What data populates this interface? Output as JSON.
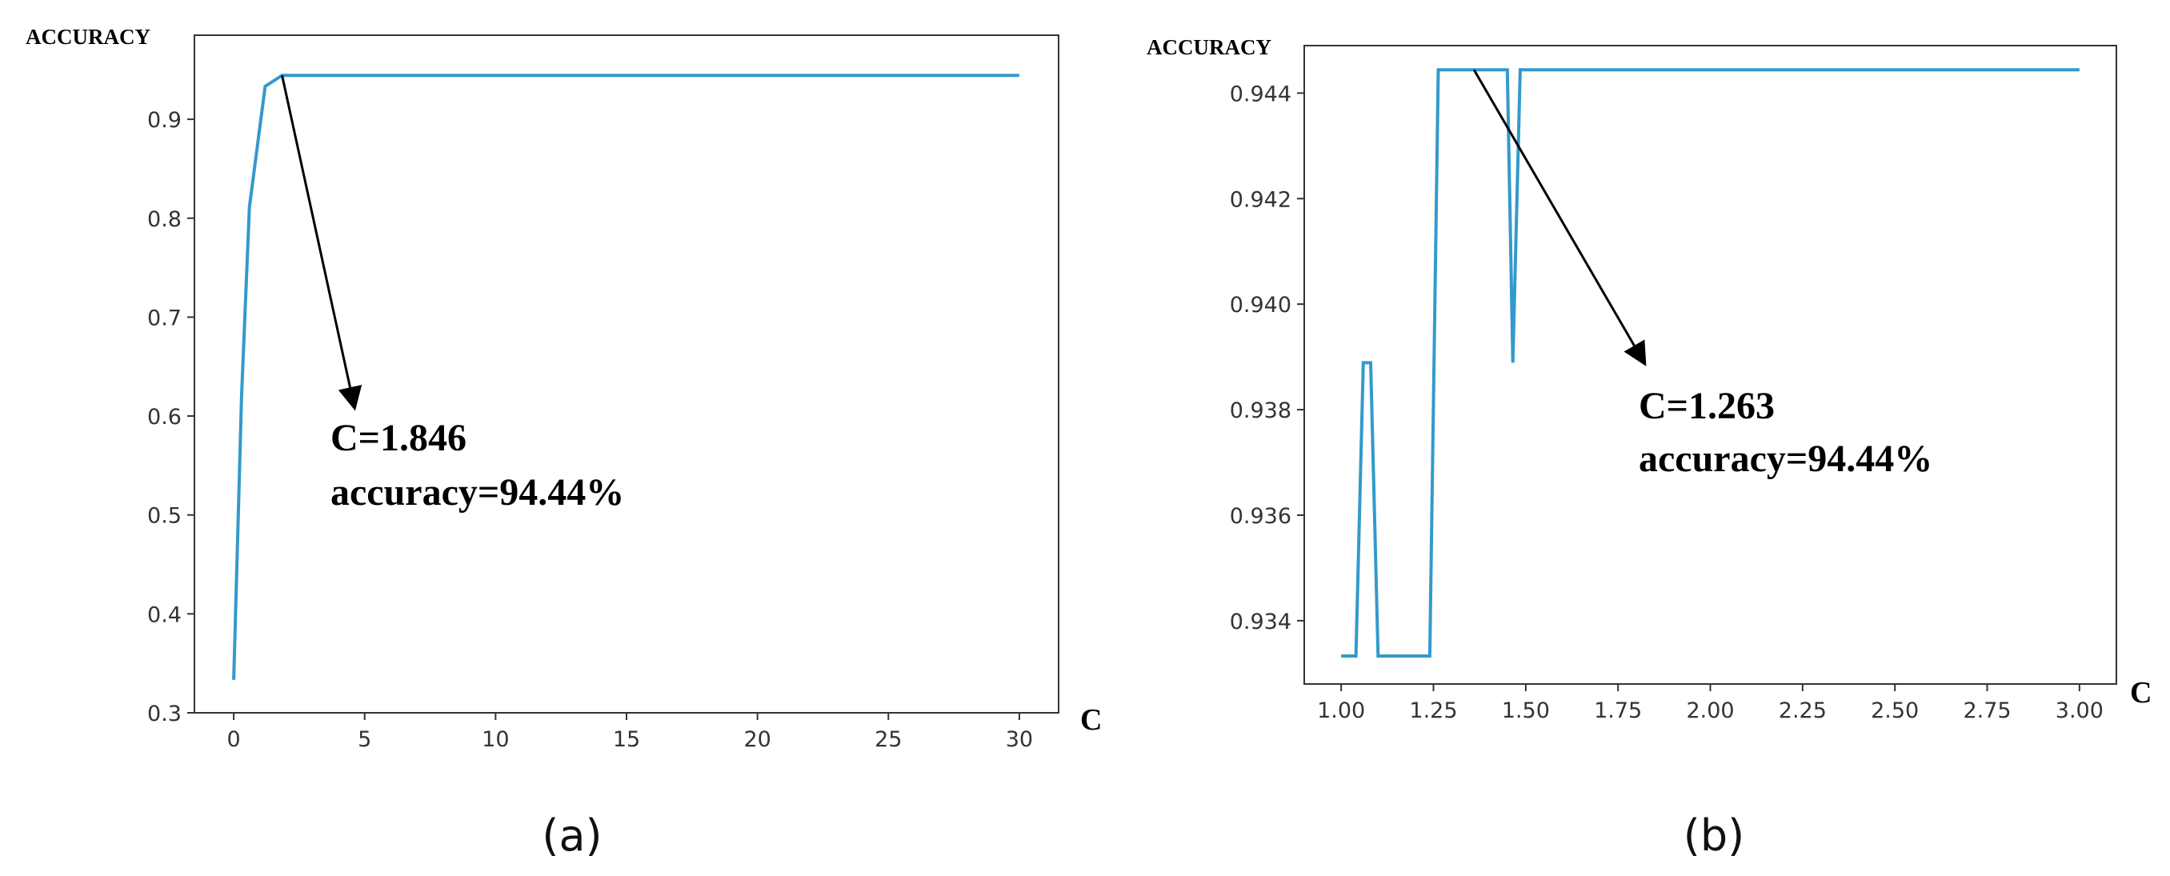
{
  "chart_data": [
    {
      "type": "line",
      "panel_label": "(a)",
      "ylabel": "ACCURACY",
      "xlabel": "C",
      "xlim": [
        -1.5,
        31.5
      ],
      "ylim": [
        0.3,
        0.985
      ],
      "xticks": [
        0,
        5,
        10,
        15,
        20,
        25,
        30
      ],
      "xtick_labels": [
        "0",
        "5",
        "10",
        "15",
        "20",
        "25",
        "30"
      ],
      "yticks": [
        0.3,
        0.4,
        0.5,
        0.6,
        0.7,
        0.8,
        0.9
      ],
      "ytick_labels": [
        "0.3",
        "0.4",
        "0.5",
        "0.6",
        "0.7",
        "0.8",
        "0.9"
      ],
      "grid": false,
      "line_color": "#3399cc",
      "series": [
        {
          "x": [
            0.0,
            0.3,
            0.6,
            1.2,
            1.85,
            30.0
          ],
          "y": [
            0.3333,
            0.62,
            0.8111,
            0.9333,
            0.9444,
            0.9444
          ]
        }
      ],
      "annotation": {
        "lines": [
          "C=1.846",
          "accuracy=94.44%"
        ],
        "point": [
          1.846,
          0.9444
        ],
        "arrow_to": [
          4.6,
          0.61
        ]
      }
    },
    {
      "type": "line",
      "panel_label": "(b)",
      "ylabel": "ACCURACY",
      "xlabel": "C",
      "xlim": [
        0.9,
        3.1
      ],
      "ylim": [
        0.9328,
        0.9449
      ],
      "xticks": [
        1.0,
        1.25,
        1.5,
        1.75,
        2.0,
        2.25,
        2.5,
        2.75,
        3.0
      ],
      "xtick_labels": [
        "1.00",
        "1.25",
        "1.50",
        "1.75",
        "2.00",
        "2.25",
        "2.50",
        "2.75",
        "3.00"
      ],
      "yticks": [
        0.934,
        0.936,
        0.938,
        0.94,
        0.942,
        0.944
      ],
      "ytick_labels": [
        "0.934",
        "0.936",
        "0.938",
        "0.940",
        "0.942",
        "0.944"
      ],
      "grid": false,
      "line_color": "#3399cc",
      "series": [
        {
          "x": [
            1.0,
            1.04,
            1.06,
            1.08,
            1.1,
            1.24,
            1.263,
            1.45,
            1.465,
            1.485,
            3.0
          ],
          "y": [
            0.93333,
            0.93333,
            0.93889,
            0.93889,
            0.93333,
            0.93333,
            0.94444,
            0.94444,
            0.93889,
            0.94444,
            0.94444
          ]
        }
      ],
      "annotation": {
        "lines": [
          "C=1.263",
          "accuracy=94.44%"
        ],
        "point": [
          1.36,
          0.94444
        ],
        "arrow_to": [
          1.82,
          0.9389
        ]
      }
    }
  ]
}
